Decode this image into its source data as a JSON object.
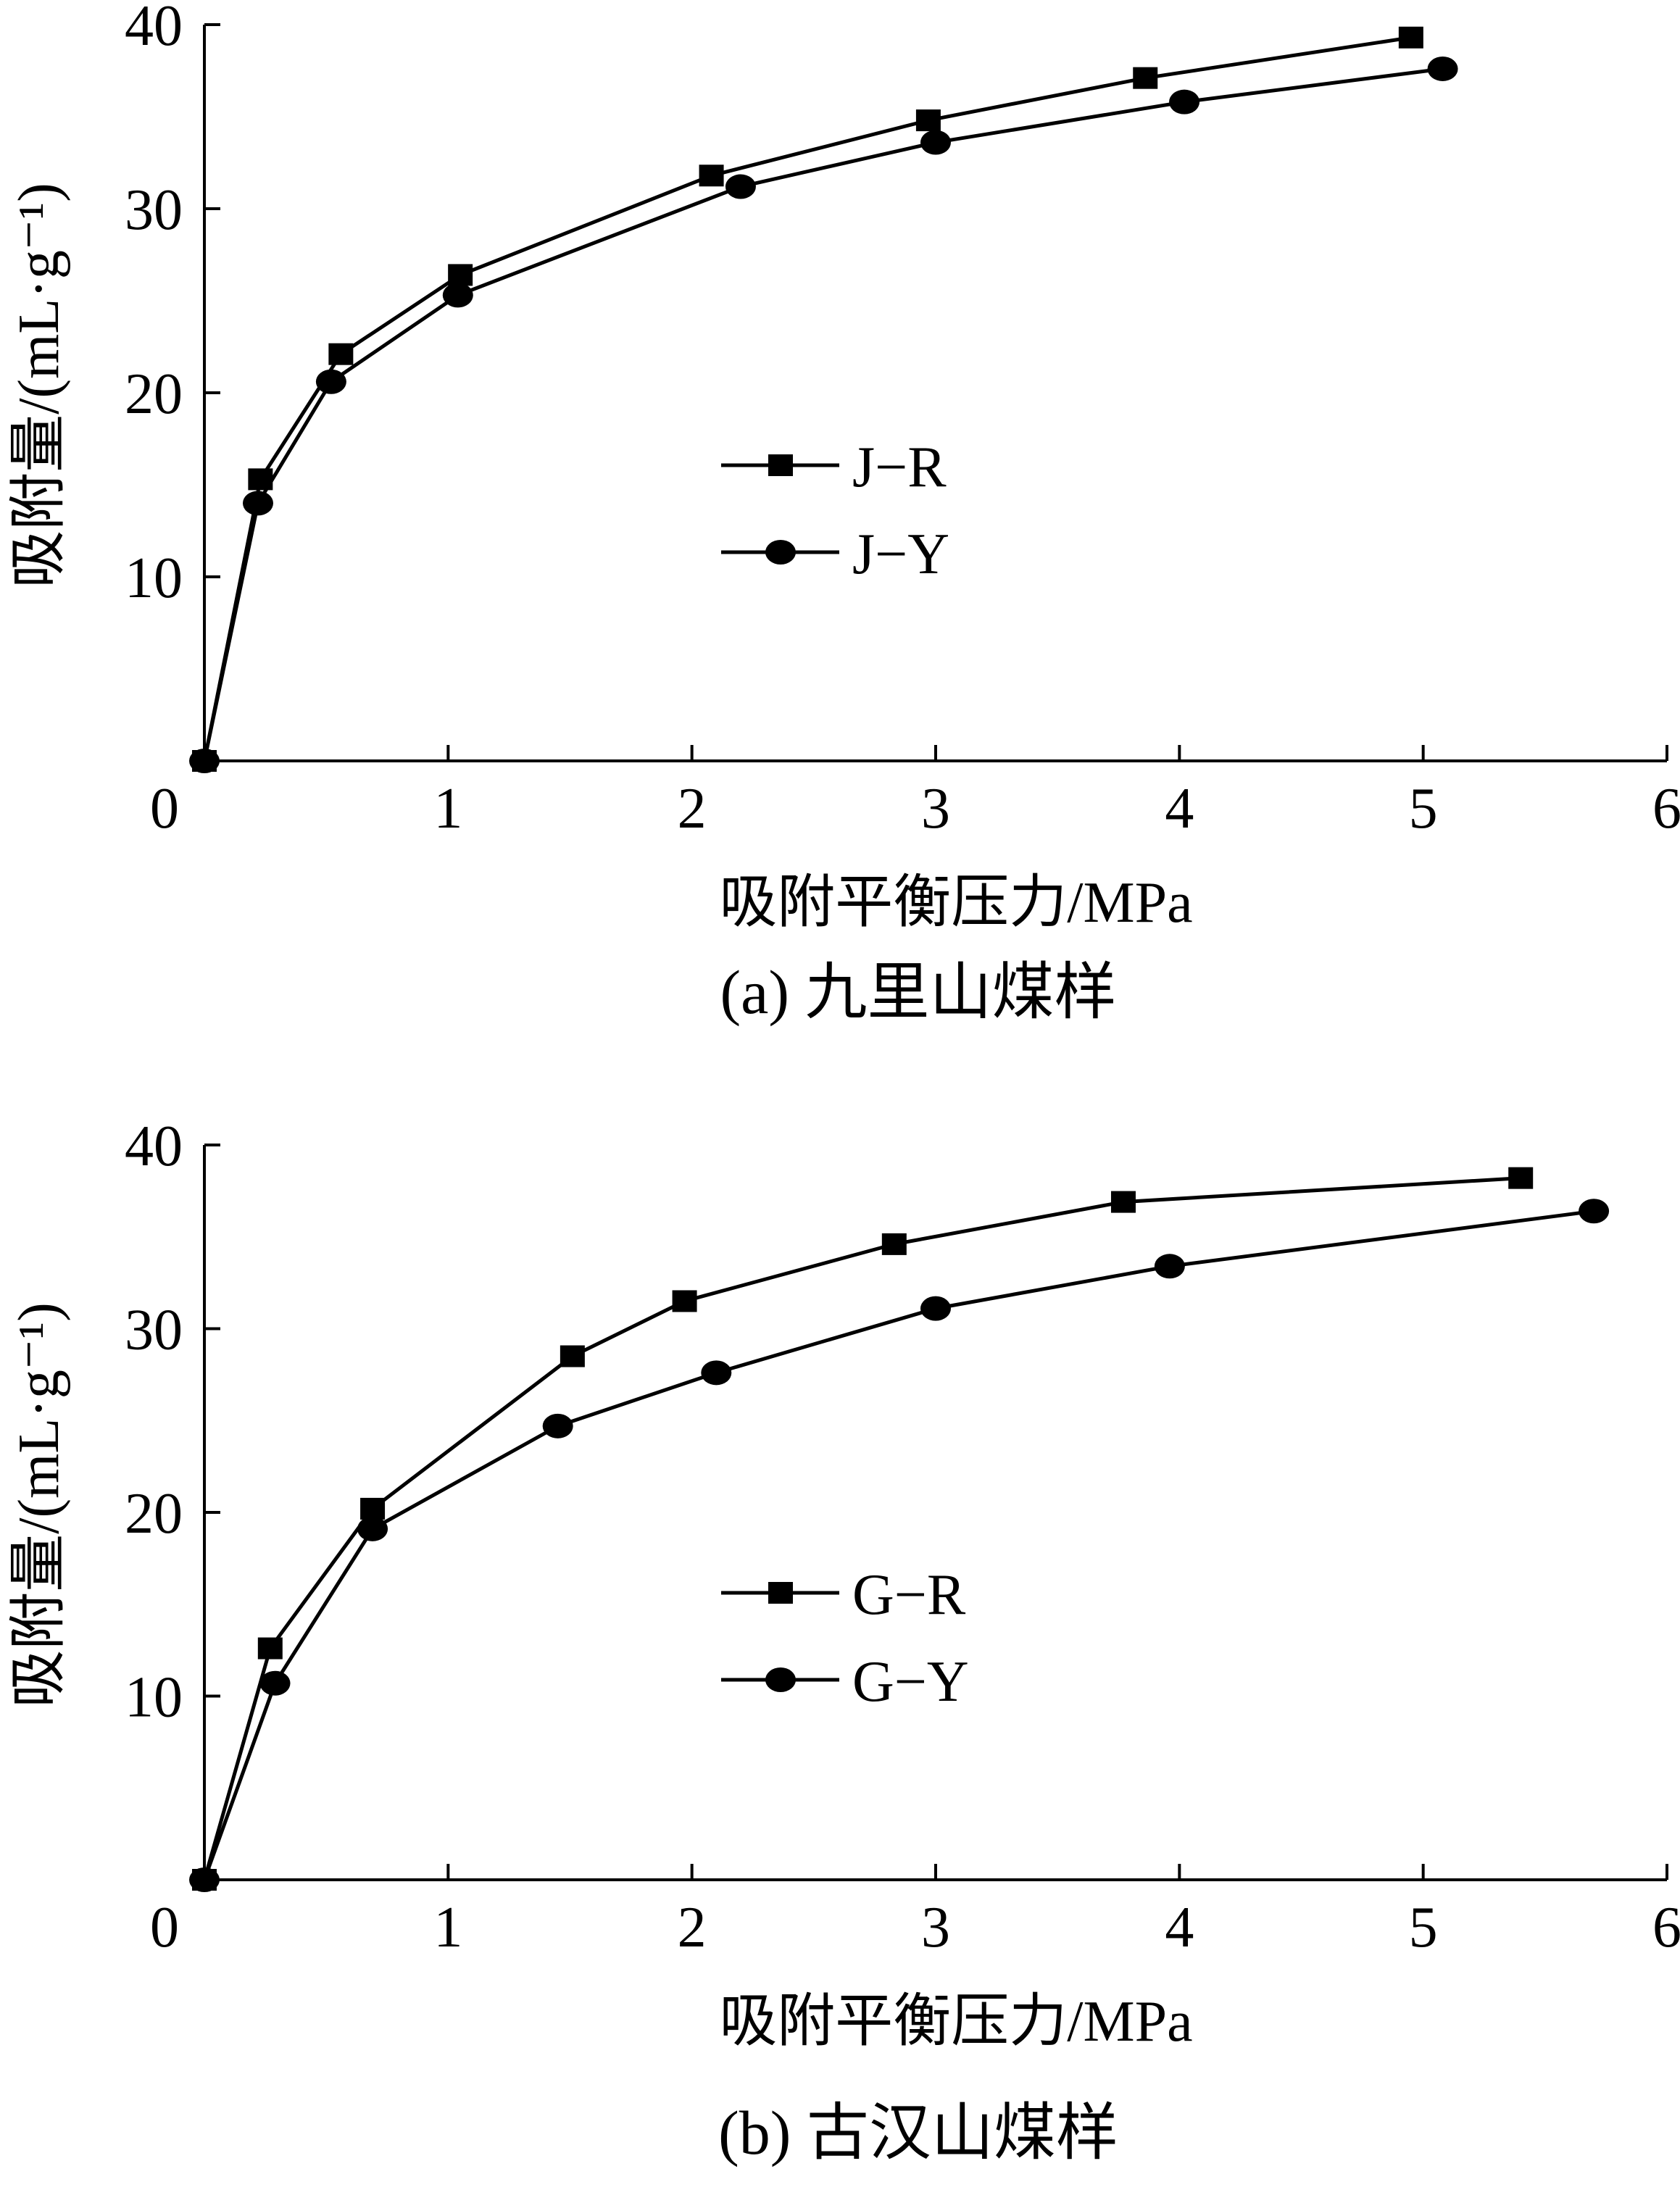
{
  "colors": {
    "ink": "#000000",
    "background": "#ffffff"
  },
  "chart_data": [
    {
      "type": "line",
      "caption": "(a) 九里山煤样",
      "xlabel": "吸附平衡压力/MPa",
      "ylabel": "吸附量/(mL·g⁻¹)",
      "xlim": [
        0,
        6
      ],
      "ylim": [
        0,
        40
      ],
      "x_ticks": [
        "0",
        "1",
        "2",
        "3",
        "4",
        "5",
        "6"
      ],
      "y_ticks": [
        "10",
        "20",
        "30",
        "40"
      ],
      "grid": false,
      "legend_position": "center",
      "series": [
        {
          "name": "J−R",
          "marker": "square",
          "x": [
            0,
            0.23,
            0.56,
            1.05,
            2.08,
            2.97,
            3.86,
            4.95
          ],
          "y": [
            0,
            15.3,
            22.1,
            26.4,
            31.8,
            34.8,
            37.1,
            39.3
          ]
        },
        {
          "name": "J−Y",
          "marker": "circle",
          "x": [
            0,
            0.22,
            0.52,
            1.04,
            2.2,
            3.0,
            4.02,
            5.08
          ],
          "y": [
            0,
            14.0,
            20.6,
            25.3,
            31.2,
            33.6,
            35.8,
            37.6
          ]
        }
      ]
    },
    {
      "type": "line",
      "caption": "(b) 古汉山煤样",
      "xlabel": "吸附平衡压力/MPa",
      "ylabel": "吸附量/(mL·g⁻¹)",
      "xlim": [
        0,
        6
      ],
      "ylim": [
        0,
        40
      ],
      "x_ticks": [
        "0",
        "1",
        "2",
        "3",
        "4",
        "5",
        "6"
      ],
      "y_ticks": [
        "10",
        "20",
        "30",
        "40"
      ],
      "grid": false,
      "legend_position": "center",
      "series": [
        {
          "name": "G−R",
          "marker": "square",
          "x": [
            0,
            0.27,
            0.69,
            1.51,
            1.97,
            2.83,
            3.77,
            5.4
          ],
          "y": [
            0,
            12.6,
            20.2,
            28.5,
            31.5,
            34.6,
            36.9,
            38.2
          ]
        },
        {
          "name": "G−Y",
          "marker": "circle",
          "x": [
            0,
            0.29,
            0.69,
            1.45,
            2.1,
            3.0,
            3.96,
            5.7
          ],
          "y": [
            0,
            10.7,
            19.1,
            24.7,
            27.6,
            31.1,
            33.4,
            36.4
          ]
        }
      ]
    }
  ]
}
